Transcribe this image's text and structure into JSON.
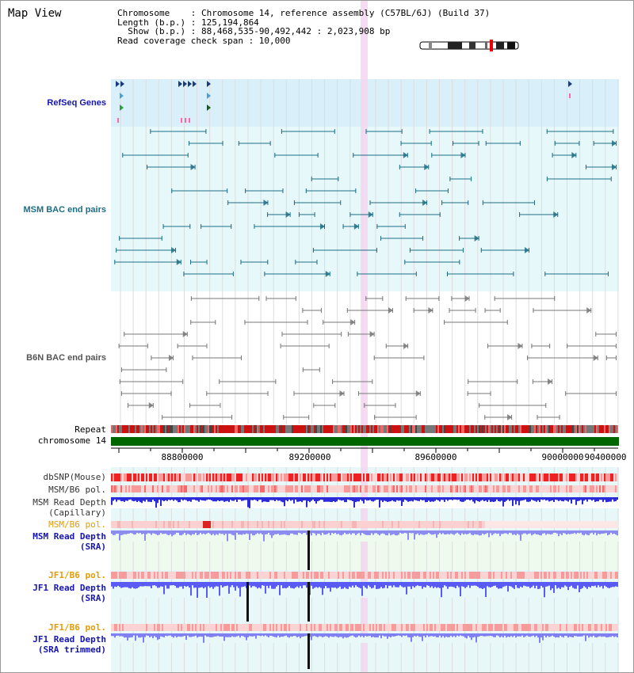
{
  "page": {
    "title": "Map View"
  },
  "info": {
    "chromosome": "Chromosome    : Chromosome 14, reference assembly (C57BL/6J) (Build 37)",
    "length": "Length (b.p.) : 125,194,864",
    "show": "Show (b.p.) : 88,468,535-90,492,442 : 2,023,908 bp",
    "read_span": "Read coverage check span : 10,000"
  },
  "tracks": {
    "refseq_genes": "RefSeq Genes",
    "msm_bac": "MSM BAC end pairs",
    "b6n_bac": "B6N BAC end pairs",
    "repeat": "Repeat",
    "chromosome": "chromosome 14",
    "dbsnp": "dbSNP(Mouse)",
    "msm_b6_pol_1": "MSM/B6 pol.",
    "msm_read_depth_cap": "MSM Read Depth\n(Capillary)",
    "msm_b6_pol_2": "MSM/B6 pol.",
    "msm_read_depth_sra": "MSM Read Depth\n(SRA)",
    "jf1_b6_pol_1": "JF1/B6 pol.",
    "jf1_read_depth_sra": "JF1 Read Depth\n(SRA)",
    "jf1_b6_pol_2": "JF1/B6 pol.",
    "jf1_read_depth_trimmed": "JF1 Read Depth\n(SRA trimmed)"
  },
  "axis": {
    "ticks": [
      "88800000",
      "89200000",
      "89600000",
      "90000000",
      "90400000"
    ]
  },
  "colors": {
    "refseq_bg": "#d9f0fb",
    "msm_bg": "#e6f8f9",
    "b6n_bg": "#ffffff",
    "highlight": "#f5d6f0",
    "msm_feature": "#1c6e86",
    "b6n_feature": "#777777",
    "depth_blue": "#3333ee",
    "snp_red": "#ee3333",
    "chromosome_green": "#006600",
    "label_blue": "#1515b0",
    "label_orange": "#e69b00",
    "label_gray": "#333333"
  }
}
